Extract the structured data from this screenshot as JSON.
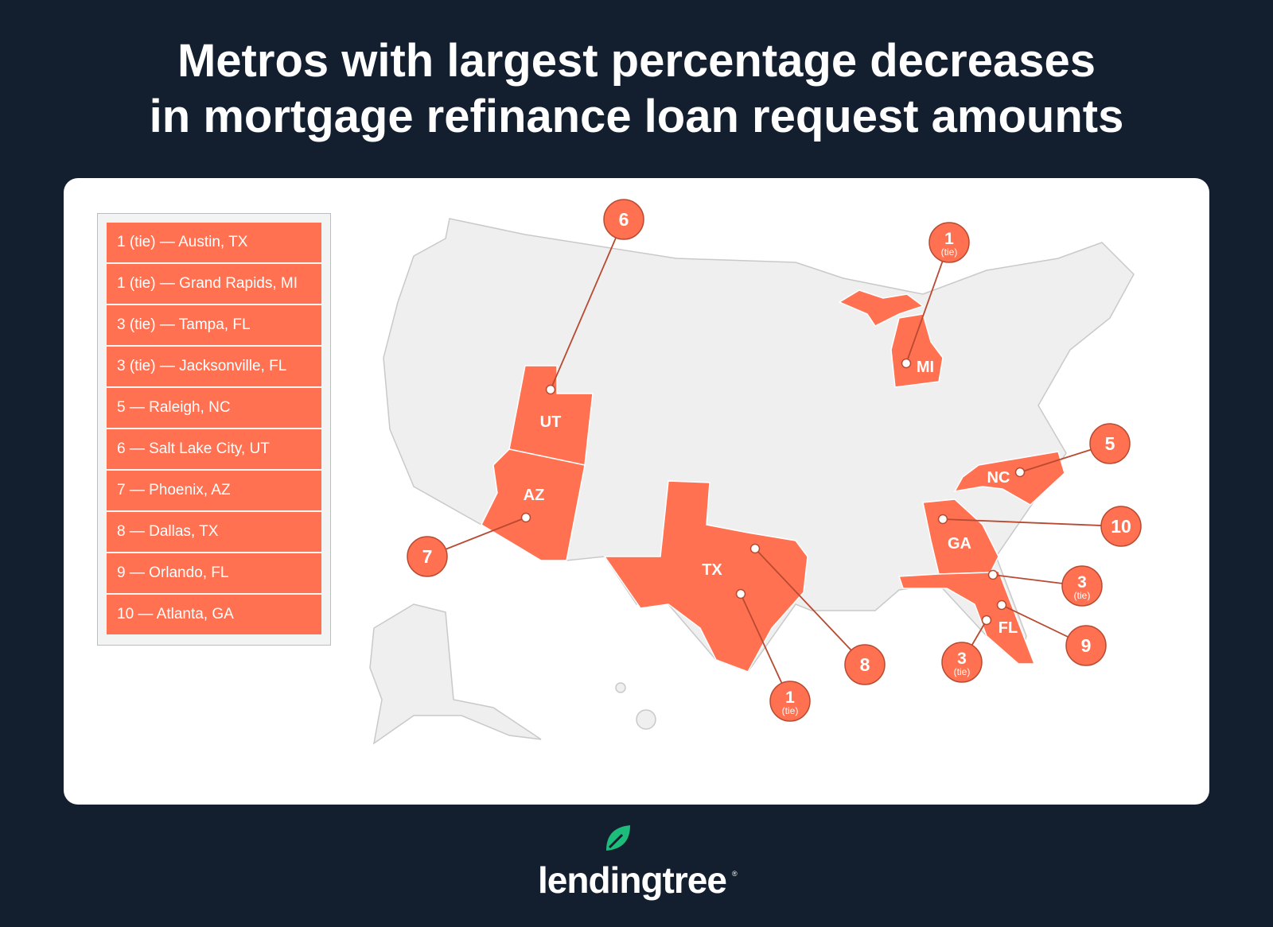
{
  "title": {
    "line1": "Metros with largest percentage decreases",
    "line2": "in mortgage refinance loan request amounts"
  },
  "legend": {
    "items": [
      "1 (tie) — Austin, TX",
      "1 (tie) — Grand Rapids, MI",
      "3 (tie) — Tampa, FL",
      "3 (tie) — Jacksonville, FL",
      "5 — Raleigh, NC",
      "6 — Salt Lake City, UT",
      "7 — Phoenix, AZ",
      "8 — Dallas, TX",
      "9 — Orlando, FL",
      "10 — Atlanta, GA"
    ]
  },
  "map": {
    "highlight_color": "#ff7150",
    "base_color": "#efefef",
    "states": {
      "UT": "UT",
      "AZ": "AZ",
      "TX": "TX",
      "MI": "MI",
      "NC": "NC",
      "GA": "GA",
      "FL": "FL"
    },
    "callouts": [
      {
        "rank": "6",
        "sub": ""
      },
      {
        "rank": "1",
        "sub": "(tie)"
      },
      {
        "rank": "5",
        "sub": ""
      },
      {
        "rank": "10",
        "sub": ""
      },
      {
        "rank": "3",
        "sub": "(tie)"
      },
      {
        "rank": "9",
        "sub": ""
      },
      {
        "rank": "3",
        "sub": "(tie)"
      },
      {
        "rank": "8",
        "sub": ""
      },
      {
        "rank": "1",
        "sub": "(tie)"
      },
      {
        "rank": "7",
        "sub": ""
      }
    ]
  },
  "logo": {
    "text": "lendingtree",
    "mark": "®",
    "leaf_color": "#1dbc7b"
  }
}
